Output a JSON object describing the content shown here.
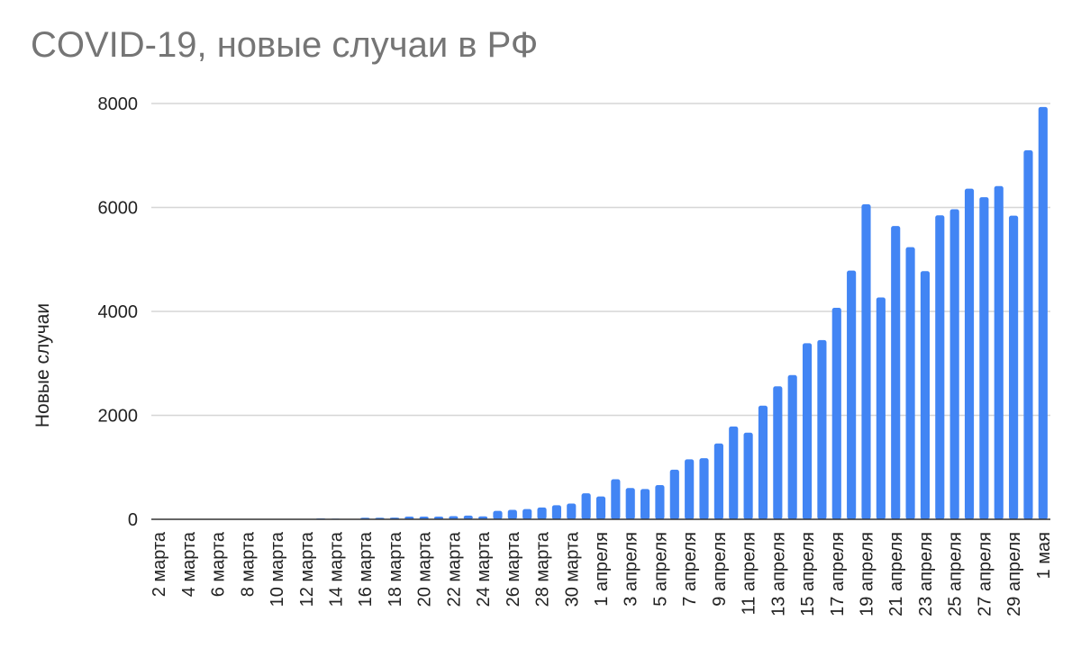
{
  "chart_data": {
    "type": "bar",
    "title": "COVID-19, новые случаи в РФ",
    "xlabel": "",
    "ylabel": "Новые случаи",
    "ylim": [
      0,
      8000
    ],
    "yticks": [
      0,
      2000,
      4000,
      6000,
      8000
    ],
    "grid": true,
    "bar_color": "#4285f4",
    "categories": [
      "2 марта",
      "3 марта",
      "4 марта",
      "5 марта",
      "6 марта",
      "7 марта",
      "8 марта",
      "9 марта",
      "10 марта",
      "11 марта",
      "12 марта",
      "13 марта",
      "14 марта",
      "15 марта",
      "16 марта",
      "17 марта",
      "18 марта",
      "19 марта",
      "20 марта",
      "21 марта",
      "22 марта",
      "23 марта",
      "24 марта",
      "25 марта",
      "26 марта",
      "27 марта",
      "28 марта",
      "29 марта",
      "30 марта",
      "31 марта",
      "1 апреля",
      "2 апреля",
      "3 апреля",
      "4 апреля",
      "5 апреля",
      "6 апреля",
      "7 апреля",
      "8 апреля",
      "9 апреля",
      "10 апреля",
      "11 апреля",
      "12 апреля",
      "13 апреля",
      "14 апреля",
      "15 апреля",
      "16 апреля",
      "17 апреля",
      "18 апреля",
      "19 апреля",
      "20 апреля",
      "21 апреля",
      "22 апреля",
      "23 апреля",
      "24 апреля",
      "25 апреля",
      "26 апреля",
      "27 апреля",
      "28 апреля",
      "29 апреля",
      "30 апреля",
      "1 мая"
    ],
    "xtick_labels": [
      "2 марта",
      "4 марта",
      "6 марта",
      "8 марта",
      "10 марта",
      "12 марта",
      "14 марта",
      "16 марта",
      "18 марта",
      "20 марта",
      "22 марта",
      "24 марта",
      "26 марта",
      "28 марта",
      "30 марта",
      "1 апреля",
      "3 апреля",
      "5 апреля",
      "7 апреля",
      "9 апреля",
      "11 апреля",
      "13 апреля",
      "15 апреля",
      "17 апреля",
      "19 апреля",
      "21 апреля",
      "23 апреля",
      "25 апреля",
      "27 апреля",
      "29 апреля",
      "1 мая"
    ],
    "values": [
      1,
      0,
      1,
      0,
      0,
      6,
      0,
      3,
      3,
      8,
      6,
      17,
      14,
      4,
      30,
      30,
      33,
      52,
      53,
      53,
      61,
      71,
      57,
      163,
      182,
      196,
      228,
      270,
      302,
      500,
      440,
      771,
      601,
      582,
      658,
      954,
      1154,
      1175,
      1459,
      1786,
      1667,
      2186,
      2558,
      2774,
      3388,
      3448,
      4070,
      4785,
      6060,
      4268,
      5642,
      5236,
      4774,
      5849,
      5966,
      6361,
      6198,
      6411,
      5841,
      7099,
      7933
    ]
  }
}
